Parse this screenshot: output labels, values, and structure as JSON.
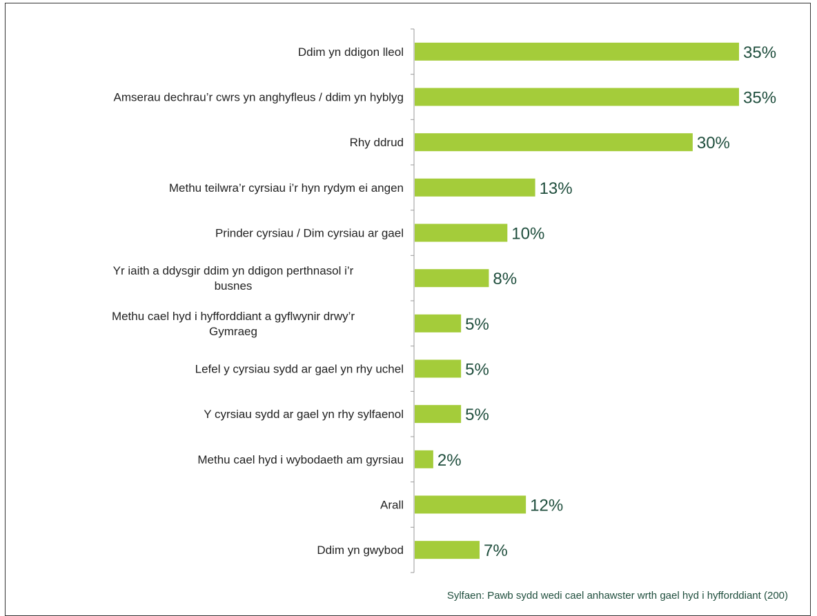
{
  "chart_data": {
    "type": "bar",
    "orientation": "horizontal",
    "categories": [
      "Ddim yn ddigon lleol",
      "Amserau dechrau’r cwrs yn anghyfleus / ddim yn hyblyg",
      "Rhy ddrud",
      "Methu teilwra’r cyrsiau i’r hyn rydym ei angen",
      "Prinder cyrsiau / Dim cyrsiau ar gael",
      "Yr iaith a ddysgir ddim yn ddigon perthnasol i’r busnes",
      "Methu cael hyd i hyfforddiant a gyflwynir drwy’r Gymraeg",
      "Lefel y cyrsiau sydd ar gael yn rhy uchel",
      "Y cyrsiau sydd ar gael yn rhy sylfaenol",
      "Methu cael hyd i wybodaeth am gyrsiau",
      "Arall",
      "Ddim yn gwybod"
    ],
    "values": [
      35,
      35,
      30,
      13,
      10,
      8,
      5,
      5,
      5,
      2,
      12,
      7
    ],
    "value_labels": [
      "35%",
      "35%",
      "30%",
      "13%",
      "10%",
      "8%",
      "5%",
      "5%",
      "5%",
      "2%",
      "12%",
      "7%"
    ],
    "xlim": [
      0,
      35
    ],
    "bar_color": "#a4cc3a",
    "label_color": "#1f4e3d",
    "grid": false
  },
  "footnote": "Sylfaen: Pawb sydd wedi cael anhawster wrth gael hyd i hyfforddiant (200)"
}
